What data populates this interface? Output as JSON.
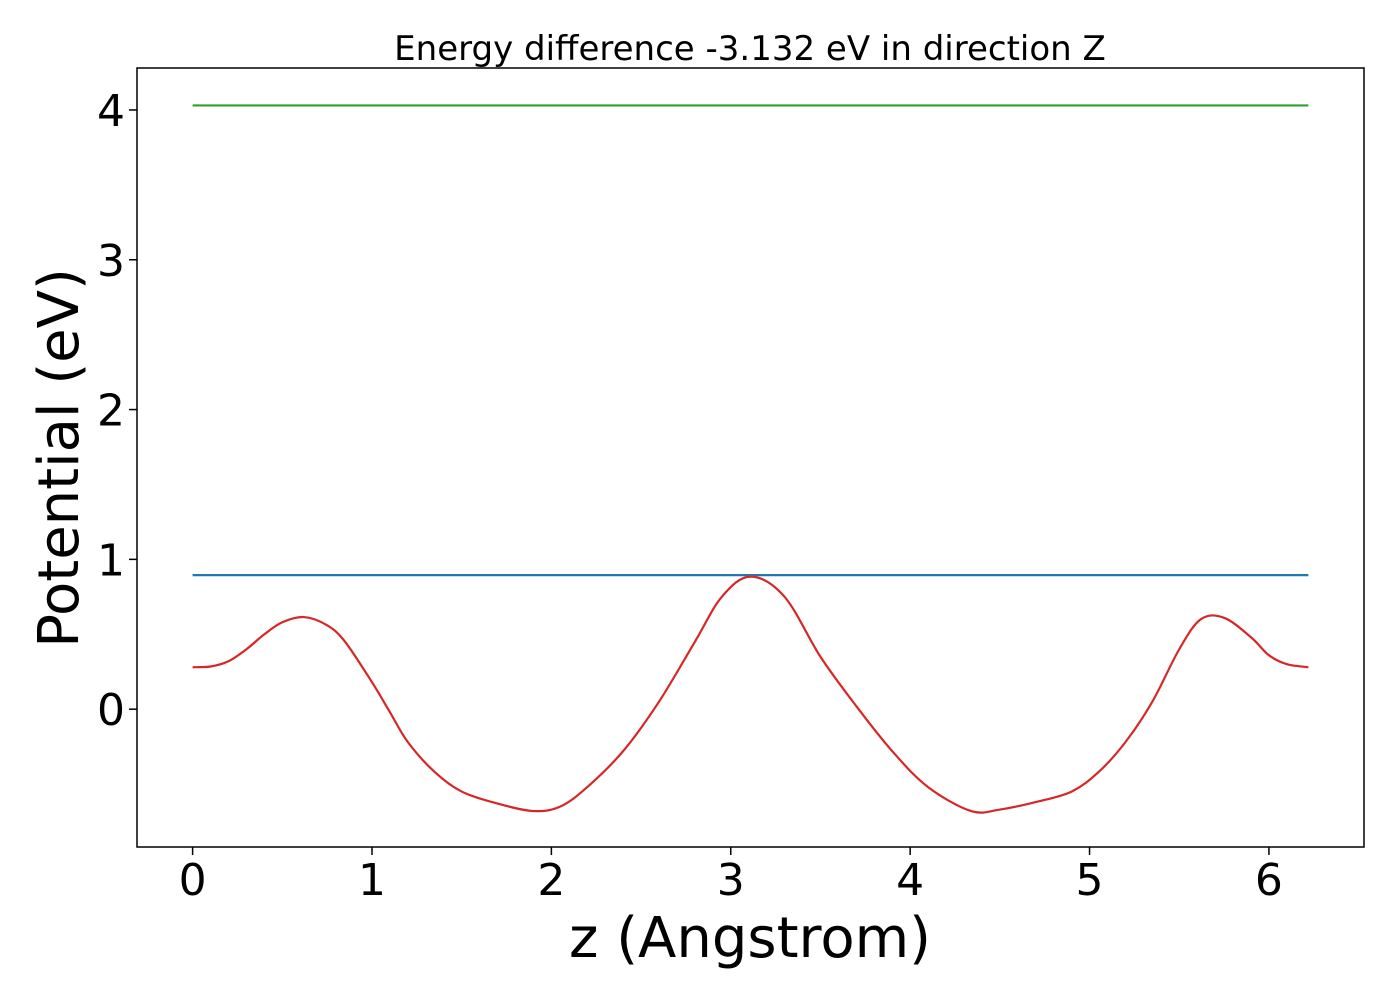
{
  "chart_data": {
    "type": "line",
    "title": "Energy difference -3.132 eV in direction Z",
    "xlabel": "z (Angstrom)",
    "ylabel": "Potential (eV)",
    "xlim": [
      -0.31,
      6.53
    ],
    "ylim": [
      -0.92,
      4.28
    ],
    "xticks": [
      0,
      1,
      2,
      3,
      4,
      5,
      6
    ],
    "yticks": [
      0,
      1,
      2,
      3,
      4
    ],
    "grid": false,
    "series": [
      {
        "color": "#1f77b4",
        "x": [
          0,
          6.22
        ],
        "y": [
          0.895,
          0.895
        ]
      },
      {
        "color": "#2ca02c",
        "x": [
          0,
          6.22
        ],
        "y": [
          4.03,
          4.03
        ]
      },
      {
        "color": "#d62728",
        "x": [
          0,
          0.1,
          0.2,
          0.3,
          0.4,
          0.5,
          0.62,
          0.75,
          0.85,
          1.0,
          1.1,
          1.2,
          1.35,
          1.5,
          1.7,
          1.9,
          2.05,
          2.2,
          2.4,
          2.6,
          2.8,
          2.95,
          3.11,
          3.3,
          3.5,
          3.7,
          3.9,
          4.1,
          4.34,
          4.5,
          4.7,
          4.9,
          5.05,
          5.2,
          5.35,
          5.5,
          5.62,
          5.75,
          5.9,
          6.0,
          6.1,
          6.22
        ],
        "y": [
          0.28,
          0.285,
          0.32,
          0.4,
          0.5,
          0.58,
          0.615,
          0.56,
          0.45,
          0.18,
          -0.02,
          -0.22,
          -0.42,
          -0.55,
          -0.63,
          -0.68,
          -0.65,
          -0.52,
          -0.28,
          0.05,
          0.45,
          0.75,
          0.885,
          0.75,
          0.35,
          0.02,
          -0.28,
          -0.52,
          -0.68,
          -0.67,
          -0.62,
          -0.55,
          -0.42,
          -0.22,
          0.05,
          0.4,
          0.6,
          0.61,
          0.48,
          0.36,
          0.3,
          0.28
        ]
      }
    ]
  }
}
